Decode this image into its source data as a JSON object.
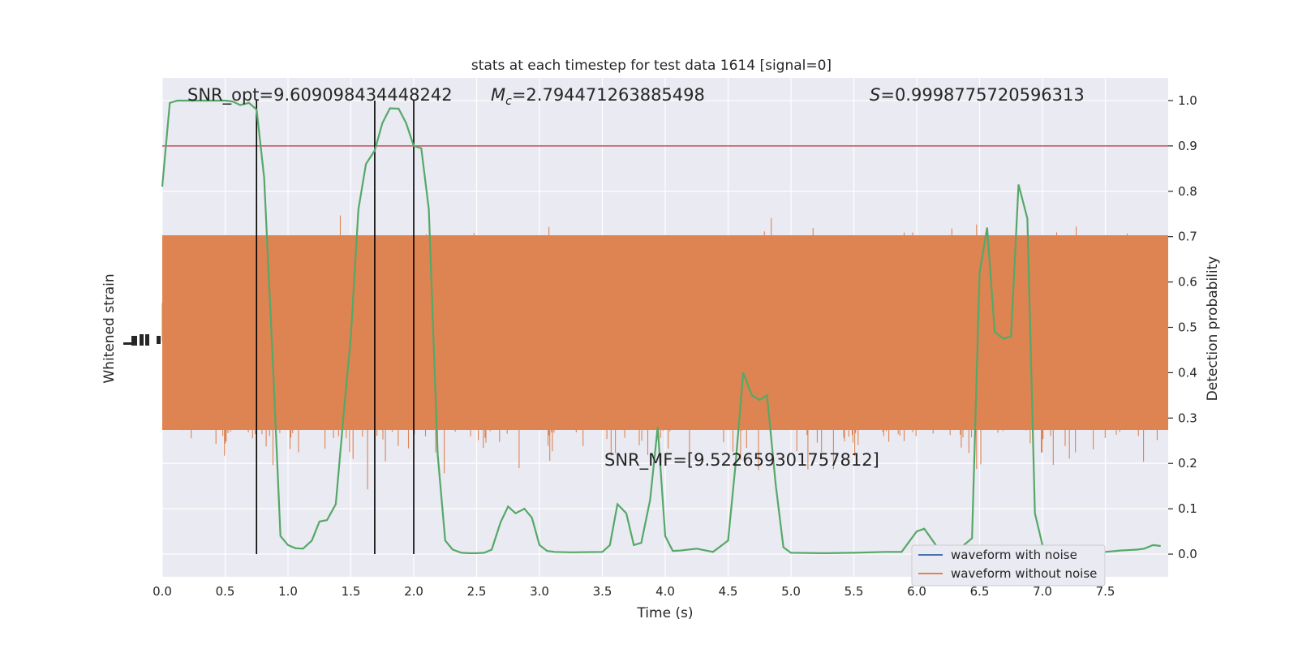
{
  "chart_data": {
    "type": "line",
    "title": "stats at each timestep for test data 1614 [signal=0]",
    "xlabel": "Time (s)",
    "ylabel_left": "Whitened strain",
    "ylabel_right": "Detection probability",
    "xlim": [
      0.0,
      8.0
    ],
    "ylim_right": [
      -0.05,
      1.05
    ],
    "x_ticks": [
      "0.0",
      "0.5",
      "1.0",
      "1.5",
      "2.0",
      "2.5",
      "3.0",
      "3.5",
      "4.0",
      "4.5",
      "5.0",
      "5.5",
      "6.0",
      "6.5",
      "7.0",
      "7.5"
    ],
    "x_tick_values": [
      0.0,
      0.5,
      1.0,
      1.5,
      2.0,
      2.5,
      3.0,
      3.5,
      4.0,
      4.5,
      5.0,
      5.5,
      6.0,
      6.5,
      7.0,
      7.5
    ],
    "y_ticks_right": [
      "0.0",
      "0.1",
      "0.2",
      "0.3",
      "0.4",
      "0.5",
      "0.6",
      "0.7",
      "0.8",
      "0.9",
      "1.0"
    ],
    "y_tick_values_right": [
      0.0,
      0.1,
      0.2,
      0.3,
      0.4,
      0.5,
      0.6,
      0.7,
      0.8,
      0.9,
      1.0
    ],
    "threshold": 0.9,
    "vlines": [
      0.75,
      1.69,
      2.0
    ],
    "annotations": {
      "snr_opt": "SNR_opt=9.609098434448242",
      "mc_symbol": "M",
      "mc_sub": "c",
      "mc_value": "=2.794471263885498",
      "s_symbol": "S",
      "s_value": "=0.9998775720596313",
      "snr_mf": "SNR_MF=[9.522659301757812]"
    },
    "legend": {
      "placement": "lower-right",
      "entries": [
        {
          "name": "waveform with noise",
          "color": "#4c72b0"
        },
        {
          "name": "waveform without noise",
          "color": "#dd8452"
        }
      ]
    },
    "colors": {
      "background": "#eaeaf2",
      "grid": "#ffffff",
      "noise_fill": "#dd8452",
      "probability": "#55a868",
      "threshold": "#c44e52",
      "vline": "#000000"
    },
    "series": [
      {
        "key": "detection_probability",
        "x": [
          0.0,
          0.06,
          0.12,
          0.19,
          0.25,
          0.31,
          0.38,
          0.44,
          0.5,
          0.56,
          0.62,
          0.69,
          0.75,
          0.81,
          0.88,
          0.94,
          1.0,
          1.06,
          1.12,
          1.19,
          1.25,
          1.31,
          1.38,
          1.44,
          1.5,
          1.56,
          1.62,
          1.69,
          1.75,
          1.81,
          1.88,
          1.94,
          2.0,
          2.06,
          2.12,
          2.19,
          2.25,
          2.31,
          2.38,
          2.44,
          2.5,
          2.56,
          2.62,
          2.69,
          2.75,
          2.81,
          2.88,
          2.94,
          3.0,
          3.06,
          3.12,
          3.25,
          3.5,
          3.56,
          3.62,
          3.69,
          3.75,
          3.81,
          3.88,
          3.94,
          4.0,
          4.06,
          4.12,
          4.25,
          4.38,
          4.5,
          4.56,
          4.62,
          4.69,
          4.75,
          4.81,
          4.88,
          4.94,
          5.0,
          5.25,
          5.5,
          5.75,
          5.88,
          6.0,
          6.06,
          6.19,
          6.31,
          6.44,
          6.5,
          6.56,
          6.62,
          6.69,
          6.75,
          6.81,
          6.88,
          6.94,
          7.0,
          7.06,
          7.25,
          7.5,
          7.62,
          7.75,
          7.81,
          7.88,
          7.94
        ],
        "y": [
          0.81,
          0.995,
          1.0,
          1.0,
          1.0,
          1.0,
          1.0,
          1.0,
          1.0,
          0.998,
          0.99,
          0.995,
          0.98,
          0.83,
          0.42,
          0.04,
          0.02,
          0.013,
          0.012,
          0.03,
          0.072,
          0.075,
          0.11,
          0.3,
          0.48,
          0.76,
          0.86,
          0.89,
          0.95,
          0.983,
          0.982,
          0.95,
          0.9,
          0.895,
          0.76,
          0.22,
          0.03,
          0.01,
          0.003,
          0.002,
          0.002,
          0.003,
          0.01,
          0.07,
          0.105,
          0.09,
          0.1,
          0.08,
          0.02,
          0.007,
          0.005,
          0.004,
          0.005,
          0.02,
          0.11,
          0.09,
          0.02,
          0.025,
          0.12,
          0.28,
          0.04,
          0.007,
          0.008,
          0.012,
          0.005,
          0.03,
          0.2,
          0.4,
          0.35,
          0.34,
          0.35,
          0.15,
          0.015,
          0.003,
          0.002,
          0.003,
          0.005,
          0.005,
          0.05,
          0.056,
          0.005,
          0.005,
          0.035,
          0.62,
          0.72,
          0.49,
          0.475,
          0.48,
          0.815,
          0.74,
          0.09,
          0.02,
          0.002,
          0.005,
          0.005,
          0.008,
          0.01,
          0.012,
          0.02,
          0.018
        ]
      }
    ]
  }
}
